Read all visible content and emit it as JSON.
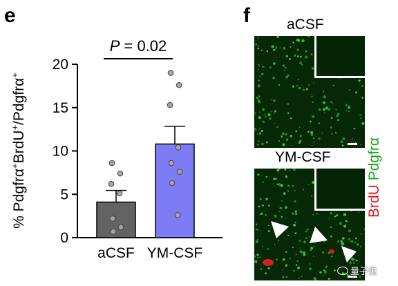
{
  "panel_e": {
    "letter": "e"
  },
  "panel_f": {
    "letter": "f",
    "top_label": "aCSF",
    "bottom_label": "YM-CSF",
    "legend_red": "BrdU",
    "legend_green": "Pdgfrα",
    "colors": {
      "red": "#e4141e",
      "green": "#1aa61a"
    }
  },
  "watermark": "量子位",
  "chart_data": {
    "type": "bar",
    "categories": [
      "aCSF",
      "YM-CSF"
    ],
    "values": [
      4.1,
      10.8
    ],
    "errors": [
      1.35,
      2.05
    ],
    "points": [
      [
        8.6,
        7.4,
        6.2,
        5.1,
        2.2,
        1.2,
        0.7
      ],
      [
        19.0,
        17.6,
        15.3,
        10.4,
        8.6,
        7.6,
        6.3,
        2.6
      ]
    ],
    "ylim": [
      0,
      20
    ],
    "yticks": [
      0,
      5,
      10,
      15,
      20
    ],
    "ylabel_parts": [
      "% Pdgfrα",
      "+",
      "BrdU",
      "+",
      "/Pdgfrα",
      "+"
    ],
    "bar_colors": [
      "#636363",
      "#7e7cf5"
    ],
    "annotation": {
      "label": "P = 0.02",
      "p_prefix": "P",
      "p_rest": " = 0.02"
    }
  }
}
